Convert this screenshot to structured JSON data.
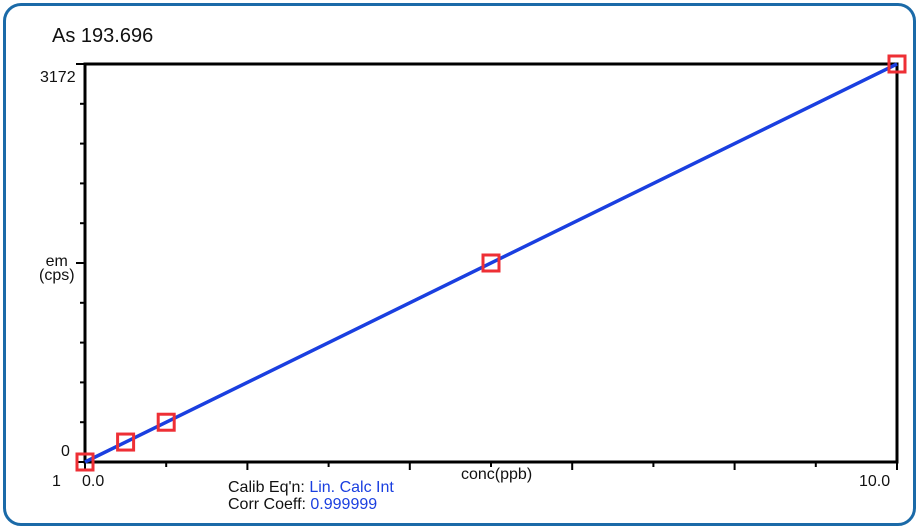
{
  "title": "As 193.696",
  "chart_data": {
    "type": "line",
    "title": "As 193.696",
    "xlabel": "conc(ppb)",
    "ylabel_line1": "em",
    "ylabel_line2": "(cps)",
    "x_tick_labels": [
      "0.0",
      "10.0"
    ],
    "y_tick_labels": [
      "0",
      "3172"
    ],
    "corner_label": "1",
    "xlim": [
      0,
      10
    ],
    "ylim": [
      0,
      3172
    ],
    "line_color": "#1a3fe0",
    "marker_color": "#ee2f35",
    "series": [
      {
        "x": [
          0.0,
          0.5,
          1.0,
          5.0,
          10.0
        ],
        "y": [
          0,
          159,
          317,
          1586,
          3172
        ]
      }
    ],
    "fit": {
      "x": [
        0.0,
        10.0
      ],
      "y": [
        0,
        3172
      ]
    }
  },
  "calibration": {
    "eq_label": "Calib Eq'n:",
    "eq_value": "Lin. Calc Int",
    "coeff_label": "Corr Coeff:",
    "coeff_value": "0.999999"
  }
}
